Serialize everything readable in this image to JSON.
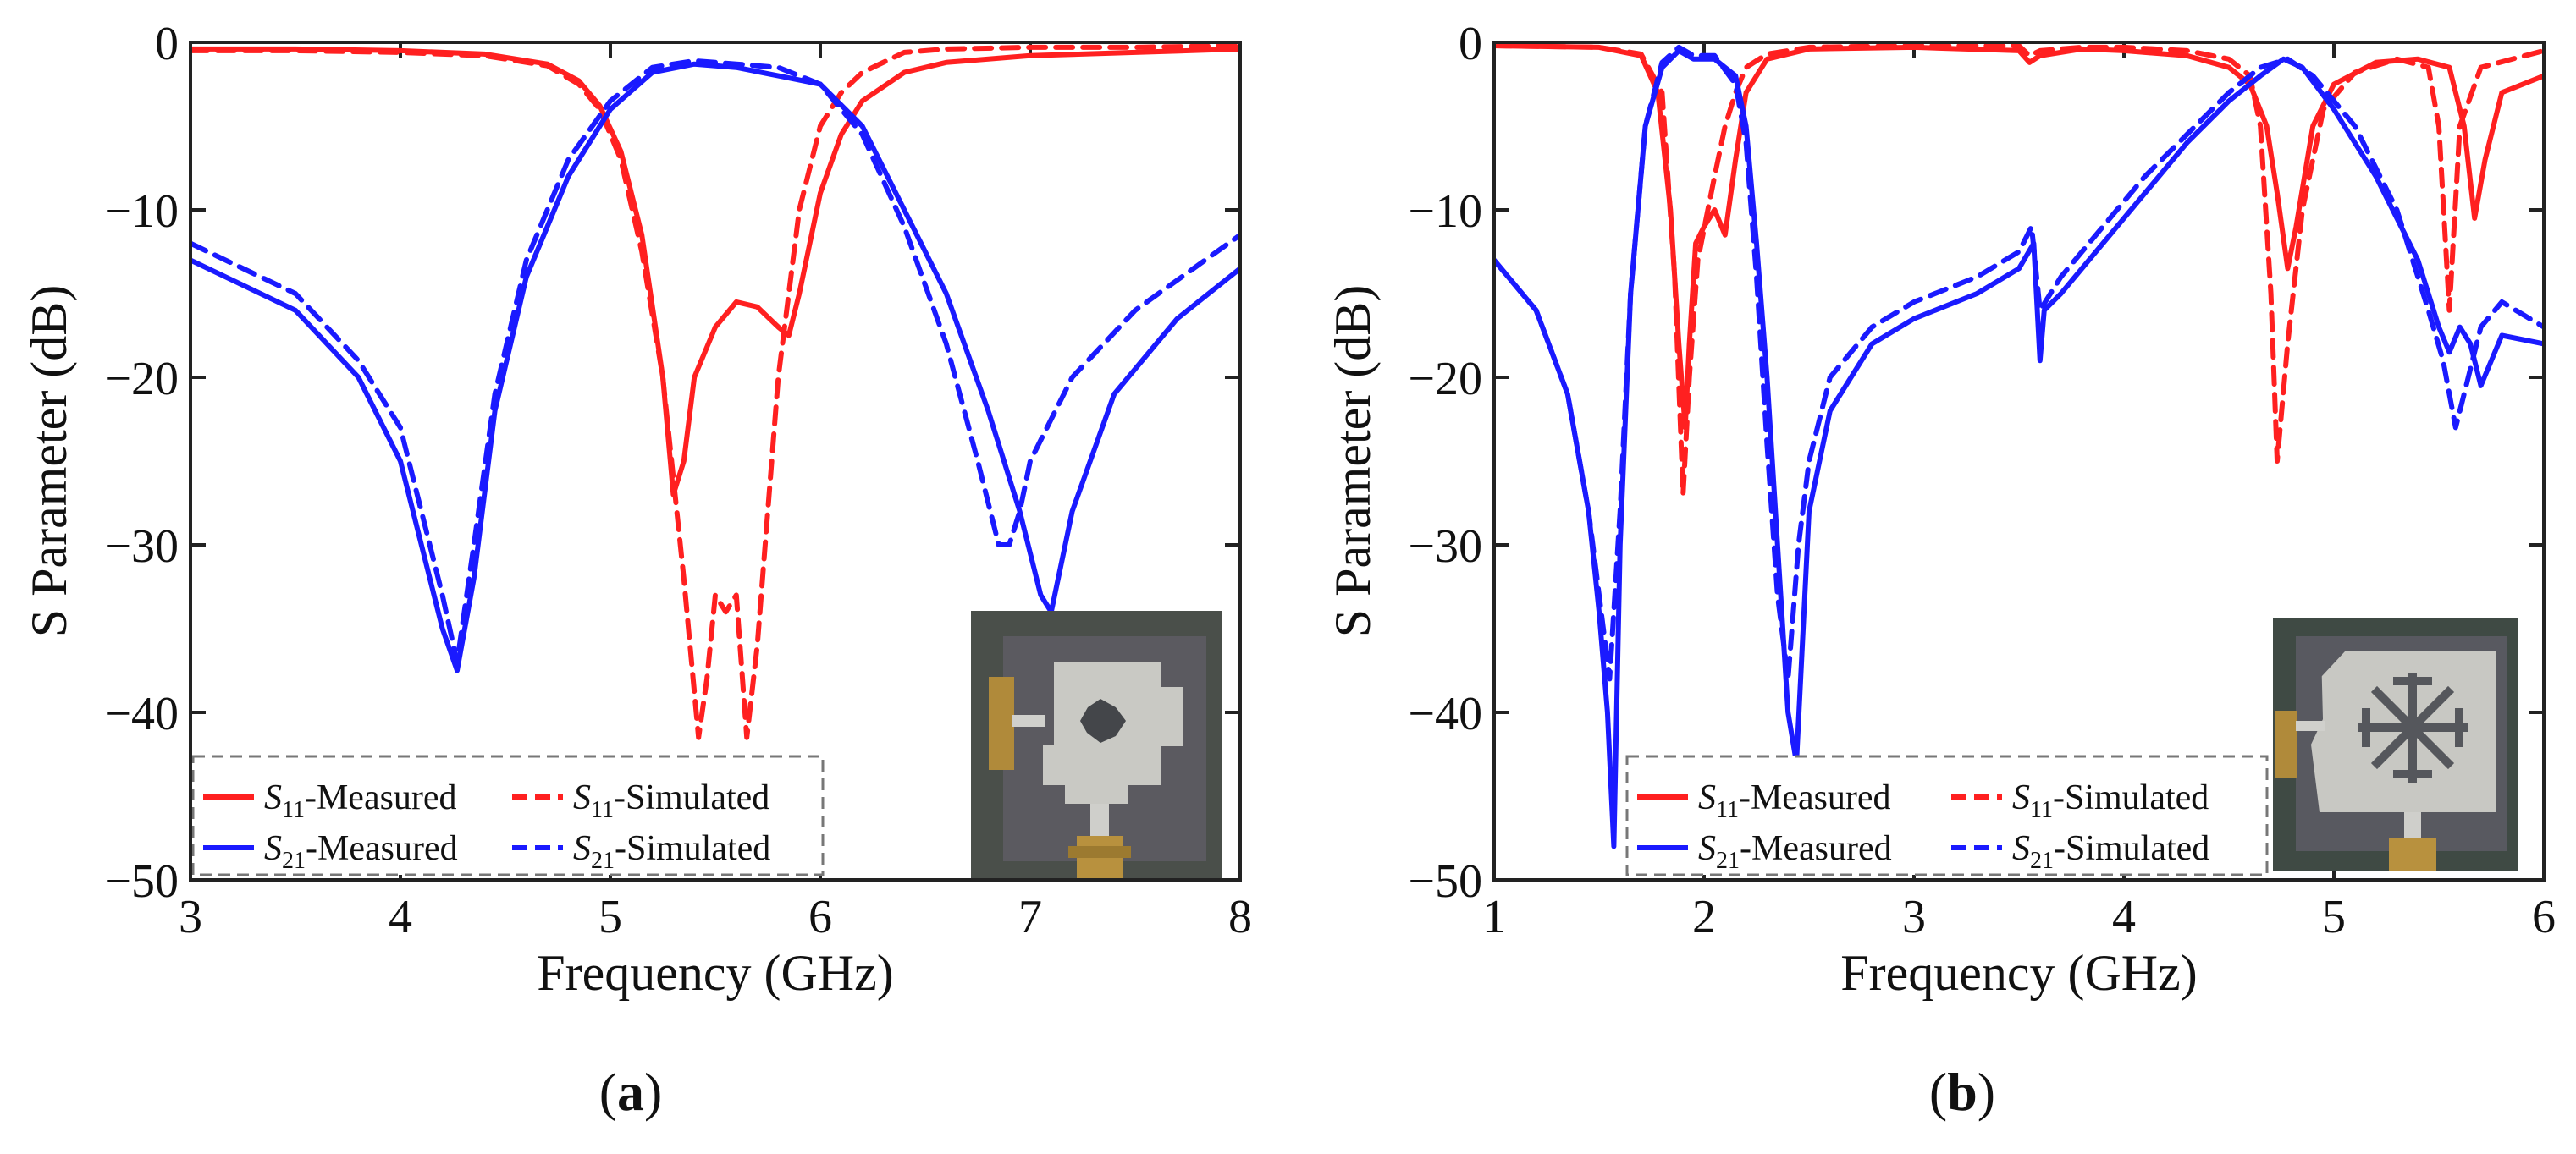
{
  "panels": [
    {
      "label": "(a)",
      "label_letter": "a",
      "chart_data": {
        "type": "line",
        "xlabel": "Frequency (GHz)",
        "ylabel": "S Parameter (dB)",
        "xlim": [
          3,
          8
        ],
        "ylim": [
          -50,
          0
        ],
        "xticks": [
          3,
          4,
          5,
          6,
          7,
          8
        ],
        "yticks": [
          0,
          -10,
          -20,
          -30,
          -40,
          -50
        ],
        "xtick_labels": [
          "3",
          "4",
          "5",
          "6",
          "7",
          "8"
        ],
        "ytick_labels": [
          "0",
          "−10",
          "−20",
          "−30",
          "−40",
          "−50"
        ],
        "grid": false,
        "legend_position": "bottom-left",
        "series": [
          {
            "name": "S11-Measured",
            "name_sym": "S",
            "name_sub": "11",
            "name_suffix": "-Measured",
            "color": "#ff2020",
            "dash": "solid",
            "x": [
              3.0,
              3.5,
              4.0,
              4.4,
              4.7,
              4.85,
              4.95,
              5.05,
              5.15,
              5.25,
              5.3,
              5.35,
              5.4,
              5.5,
              5.6,
              5.7,
              5.8,
              5.85,
              5.9,
              6.0,
              6.1,
              6.2,
              6.4,
              6.6,
              7.0,
              7.5,
              8.0
            ],
            "y": [
              -0.4,
              -0.4,
              -0.5,
              -0.7,
              -1.3,
              -2.3,
              -3.8,
              -6.5,
              -11.5,
              -20,
              -27,
              -25,
              -20,
              -17,
              -15.5,
              -15.8,
              -17,
              -17.5,
              -15,
              -9,
              -5.5,
              -3.5,
              -1.8,
              -1.2,
              -0.8,
              -0.6,
              -0.4
            ]
          },
          {
            "name": "S11-Simulated",
            "name_sym": "S",
            "name_sub": "11",
            "name_suffix": "-Simulated",
            "color": "#ff2020",
            "dash": "dashed",
            "x": [
              3.0,
              3.5,
              4.0,
              4.4,
              4.7,
              4.85,
              4.95,
              5.05,
              5.15,
              5.25,
              5.35,
              5.42,
              5.46,
              5.5,
              5.55,
              5.6,
              5.65,
              5.7,
              5.75,
              5.8,
              5.9,
              6.0,
              6.1,
              6.2,
              6.4,
              6.6,
              7.0,
              7.5,
              8.0
            ],
            "y": [
              -0.5,
              -0.5,
              -0.6,
              -0.8,
              -1.4,
              -2.5,
              -4.0,
              -7.0,
              -12.5,
              -20,
              -32,
              -41.5,
              -38,
              -33,
              -34,
              -33,
              -41.5,
              -36,
              -28,
              -20,
              -10,
              -5,
              -3,
              -1.8,
              -0.6,
              -0.4,
              -0.3,
              -0.3,
              -0.2
            ]
          },
          {
            "name": "S21-Measured",
            "name_sym": "S",
            "name_sub": "21",
            "name_suffix": "-Measured",
            "color": "#1a1aff",
            "dash": "solid",
            "x": [
              3.0,
              3.5,
              3.8,
              4.0,
              4.1,
              4.2,
              4.27,
              4.35,
              4.45,
              4.6,
              4.8,
              5.0,
              5.2,
              5.4,
              5.6,
              5.8,
              6.0,
              6.2,
              6.4,
              6.6,
              6.8,
              6.95,
              7.05,
              7.1,
              7.2,
              7.4,
              7.7,
              8.0
            ],
            "y": [
              -13,
              -16,
              -20,
              -25,
              -30,
              -35,
              -37.5,
              -32,
              -22,
              -14,
              -8,
              -4,
              -1.8,
              -1.3,
              -1.5,
              -2.0,
              -2.5,
              -5.0,
              -10,
              -15,
              -22,
              -28,
              -33,
              -34,
              -28,
              -21,
              -16.5,
              -13.5
            ]
          },
          {
            "name": "S21-Simulated",
            "name_sym": "S",
            "name_sub": "21",
            "name_suffix": "-Simulated",
            "color": "#1a1aff",
            "dash": "dashed",
            "x": [
              3.0,
              3.5,
              3.8,
              4.0,
              4.1,
              4.2,
              4.27,
              4.35,
              4.45,
              4.6,
              4.8,
              5.0,
              5.2,
              5.4,
              5.6,
              5.8,
              6.0,
              6.2,
              6.4,
              6.6,
              6.75,
              6.85,
              6.9,
              6.95,
              7.0,
              7.2,
              7.5,
              8.0
            ],
            "y": [
              -12,
              -15,
              -19,
              -23,
              -28,
              -33,
              -37,
              -30,
              -21,
              -13,
              -7,
              -3.5,
              -1.5,
              -1.1,
              -1.3,
              -1.5,
              -2.5,
              -5.5,
              -11,
              -18,
              -25,
              -30,
              -30,
              -28,
              -25,
              -20,
              -16,
              -11.5
            ]
          }
        ]
      }
    },
    {
      "label": "(b)",
      "label_letter": "b",
      "chart_data": {
        "type": "line",
        "xlabel": "Frequency (GHz)",
        "ylabel": "S Parameter (dB)",
        "xlim": [
          1,
          6
        ],
        "ylim": [
          -50,
          0
        ],
        "xticks": [
          1,
          2,
          3,
          4,
          5,
          6
        ],
        "yticks": [
          0,
          -10,
          -20,
          -30,
          -40,
          -50
        ],
        "xtick_labels": [
          "1",
          "2",
          "3",
          "4",
          "5",
          "6"
        ],
        "ytick_labels": [
          "0",
          "−10",
          "−20",
          "−30",
          "−40",
          "−50"
        ],
        "grid": false,
        "legend_position": "bottom-center",
        "series": [
          {
            "name": "S11-Measured",
            "name_sym": "S",
            "name_sub": "11",
            "name_suffix": "-Measured",
            "color": "#ff2020",
            "dash": "solid",
            "x": [
              1.0,
              1.5,
              1.7,
              1.78,
              1.84,
              1.88,
              1.91,
              1.93,
              1.96,
              2.0,
              2.05,
              2.1,
              2.15,
              2.2,
              2.3,
              2.5,
              3.0,
              3.5,
              3.55,
              3.6,
              3.8,
              4.0,
              4.3,
              4.5,
              4.6,
              4.68,
              4.73,
              4.78,
              4.82,
              4.9,
              5.0,
              5.2,
              5.4,
              5.55,
              5.62,
              5.67,
              5.72,
              5.8,
              6.0
            ],
            "y": [
              -0.2,
              -0.3,
              -0.8,
              -3,
              -10,
              -18,
              -23,
              -18,
              -12,
              -11,
              -10,
              -11.5,
              -7,
              -3,
              -1,
              -0.4,
              -0.3,
              -0.5,
              -1.2,
              -0.8,
              -0.4,
              -0.5,
              -0.8,
              -1.5,
              -2.5,
              -5,
              -9,
              -13.5,
              -11,
              -5,
              -2.5,
              -1.2,
              -1,
              -1.5,
              -5,
              -10.5,
              -7,
              -3,
              -2
            ]
          },
          {
            "name": "S11-Simulated",
            "name_sym": "S",
            "name_sub": "11",
            "name_suffix": "-Simulated",
            "color": "#ff2020",
            "dash": "dashed",
            "x": [
              1.0,
              1.5,
              1.7,
              1.8,
              1.86,
              1.9,
              1.93,
              1.97,
              2.05,
              2.1,
              2.15,
              2.2,
              2.3,
              2.5,
              3.0,
              3.5,
              3.55,
              3.6,
              3.8,
              4.0,
              4.3,
              4.5,
              4.6,
              4.65,
              4.7,
              4.73,
              4.78,
              4.85,
              4.95,
              5.1,
              5.3,
              5.45,
              5.5,
              5.55,
              5.6,
              5.7,
              6.0
            ],
            "y": [
              -0.2,
              -0.3,
              -0.7,
              -3,
              -14,
              -27,
              -20,
              -13,
              -8,
              -5,
              -3,
              -1.5,
              -0.7,
              -0.3,
              -0.2,
              -0.2,
              -0.8,
              -0.5,
              -0.3,
              -0.3,
              -0.5,
              -1,
              -2,
              -5,
              -15,
              -25,
              -18,
              -10,
              -4,
              -1.8,
              -1,
              -1.5,
              -5,
              -16,
              -5,
              -1.5,
              -0.5
            ]
          },
          {
            "name": "S21-Measured",
            "name_sym": "S",
            "name_sub": "21",
            "name_suffix": "-Measured",
            "color": "#1a1aff",
            "dash": "solid",
            "x": [
              1.0,
              1.2,
              1.35,
              1.45,
              1.5,
              1.54,
              1.57,
              1.6,
              1.65,
              1.72,
              1.8,
              1.88,
              1.95,
              2.05,
              2.15,
              2.2,
              2.25,
              2.3,
              2.35,
              2.4,
              2.44,
              2.5,
              2.6,
              2.8,
              3.0,
              3.3,
              3.5,
              3.57,
              3.6,
              3.62,
              3.7,
              3.9,
              4.1,
              4.3,
              4.5,
              4.65,
              4.76,
              4.85,
              5.0,
              5.2,
              5.4,
              5.5,
              5.55,
              5.6,
              5.65,
              5.7,
              5.8,
              6.0
            ],
            "y": [
              -13,
              -16,
              -21,
              -28,
              -34,
              -40,
              -48,
              -30,
              -15,
              -5,
              -1.5,
              -0.5,
              -1,
              -1,
              -2,
              -5,
              -12,
              -20,
              -30,
              -40,
              -43,
              -28,
              -22,
              -18,
              -16.5,
              -15,
              -13.5,
              -12,
              -19,
              -16,
              -15,
              -12,
              -9,
              -6,
              -3.5,
              -2,
              -1,
              -1.5,
              -4,
              -8,
              -13,
              -17,
              -18.5,
              -17,
              -18,
              -20.5,
              -17.5,
              -18
            ]
          },
          {
            "name": "S21-Simulated",
            "name_sym": "S",
            "name_sub": "21",
            "name_suffix": "-Simulated",
            "color": "#1a1aff",
            "dash": "dashed",
            "x": [
              1.0,
              1.2,
              1.35,
              1.45,
              1.5,
              1.55,
              1.6,
              1.65,
              1.72,
              1.8,
              1.88,
              1.95,
              2.05,
              2.15,
              2.2,
              2.25,
              2.3,
              2.35,
              2.4,
              2.45,
              2.5,
              2.6,
              2.8,
              3.0,
              3.3,
              3.5,
              3.56,
              3.6,
              3.7,
              3.9,
              4.1,
              4.3,
              4.5,
              4.65,
              4.78,
              4.9,
              5.1,
              5.3,
              5.45,
              5.52,
              5.58,
              5.62,
              5.7,
              5.8,
              6.0
            ],
            "y": [
              -13,
              -16,
              -21,
              -28,
              -33,
              -38,
              -28,
              -15,
              -5,
              -1.2,
              -0.3,
              -0.8,
              -0.8,
              -2.5,
              -6,
              -14,
              -24,
              -33,
              -38,
              -30,
              -25,
              -20,
              -17,
              -15.5,
              -14,
              -12.5,
              -11,
              -16,
              -14,
              -11,
              -8,
              -5.5,
              -3,
              -1.5,
              -1,
              -2,
              -5,
              -10,
              -16,
              -19,
              -23,
              -21,
              -17,
              -15.5,
              -17
            ]
          }
        ]
      }
    }
  ]
}
